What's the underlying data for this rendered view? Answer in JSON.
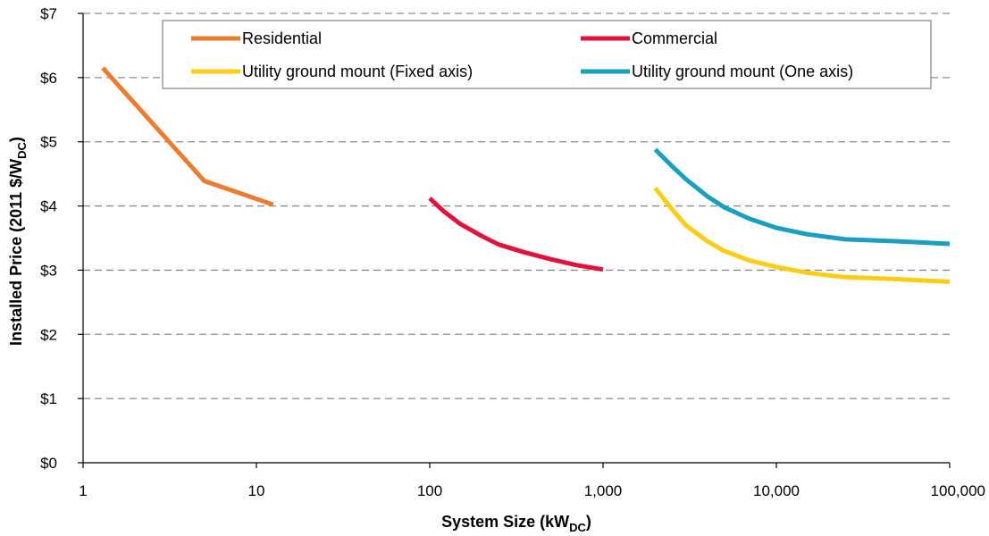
{
  "chart_data": {
    "type": "line",
    "xlabel_main": "System Size (kW",
    "xlabel_sub": "DC",
    "xlabel_end": ")",
    "ylabel_main": "Installed Price (2011 $/W",
    "ylabel_sub": "DC",
    "ylabel_end": ")",
    "x_scale": "log",
    "xlim": [
      1,
      100000
    ],
    "ylim": [
      0,
      7
    ],
    "x_ticks": [
      {
        "value": 1,
        "label": "1"
      },
      {
        "value": 10,
        "label": "10"
      },
      {
        "value": 100,
        "label": "100"
      },
      {
        "value": 1000,
        "label": "1,000"
      },
      {
        "value": 10000,
        "label": "10,000"
      },
      {
        "value": 100000,
        "label": "100,000"
      }
    ],
    "y_ticks": [
      {
        "value": 0,
        "label": "$0"
      },
      {
        "value": 1,
        "label": "$1"
      },
      {
        "value": 2,
        "label": "$2"
      },
      {
        "value": 3,
        "label": "$3"
      },
      {
        "value": 4,
        "label": "$4"
      },
      {
        "value": 5,
        "label": "$5"
      },
      {
        "value": 6,
        "label": "$6"
      },
      {
        "value": 7,
        "label": "$7"
      }
    ],
    "grid": true,
    "legend_position": "top",
    "series": [
      {
        "name": "Residential",
        "color": "#ec7b33",
        "points": [
          [
            1.3,
            6.15
          ],
          [
            5,
            4.39
          ],
          [
            12.5,
            4.02
          ]
        ]
      },
      {
        "name": "Commercial",
        "color": "#e0123e",
        "points": [
          [
            100,
            4.12
          ],
          [
            120,
            3.92
          ],
          [
            150,
            3.72
          ],
          [
            200,
            3.53
          ],
          [
            250,
            3.4
          ],
          [
            350,
            3.28
          ],
          [
            500,
            3.17
          ],
          [
            700,
            3.08
          ],
          [
            1000,
            3.01
          ]
        ]
      },
      {
        "name": "Utility ground mount (Fixed axis)",
        "color": "#fccd17",
        "points": [
          [
            2000,
            4.28
          ],
          [
            2500,
            3.95
          ],
          [
            3000,
            3.7
          ],
          [
            4000,
            3.45
          ],
          [
            5000,
            3.3
          ],
          [
            7000,
            3.15
          ],
          [
            10000,
            3.05
          ],
          [
            15000,
            2.96
          ],
          [
            25000,
            2.89
          ],
          [
            50000,
            2.86
          ],
          [
            100000,
            2.82
          ]
        ]
      },
      {
        "name": "Utility ground mount (One axis)",
        "color": "#1a9fc0",
        "points": [
          [
            2000,
            4.88
          ],
          [
            2500,
            4.62
          ],
          [
            3000,
            4.42
          ],
          [
            4000,
            4.15
          ],
          [
            5000,
            3.98
          ],
          [
            7000,
            3.8
          ],
          [
            10000,
            3.66
          ],
          [
            15000,
            3.56
          ],
          [
            25000,
            3.48
          ],
          [
            50000,
            3.45
          ],
          [
            100000,
            3.41
          ]
        ]
      }
    ]
  }
}
